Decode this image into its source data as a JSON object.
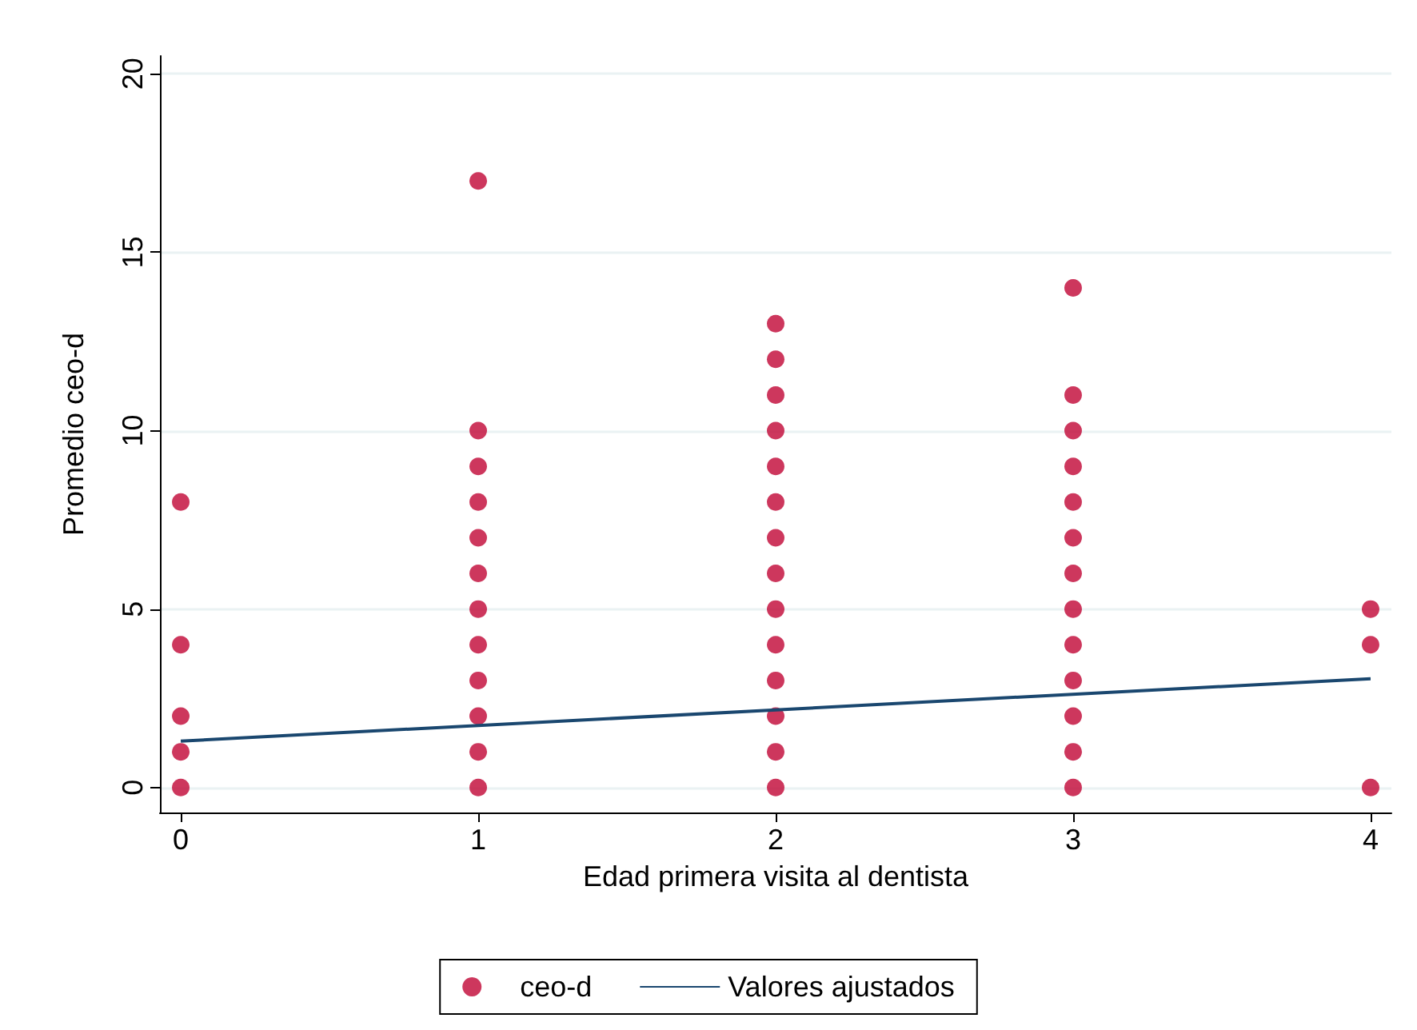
{
  "chart_data": {
    "type": "scatter",
    "xlabel": "Edad primera visita al dentista",
    "ylabel": "Promedio ceo-d",
    "xlim": [
      -0.07,
      4.07
    ],
    "xticks": [
      0,
      1,
      2,
      3,
      4
    ],
    "ylim": [
      -0.7,
      20.5
    ],
    "yticks": [
      0,
      5,
      10,
      15,
      20
    ],
    "grid": "y",
    "legend": "bottom",
    "series": [
      {
        "name": "ceo-d",
        "marker": "circle",
        "color": "#c10534",
        "x": [
          0,
          0,
          0,
          0,
          0,
          1,
          1,
          1,
          1,
          1,
          1,
          1,
          1,
          1,
          1,
          1,
          1,
          2,
          2,
          2,
          2,
          2,
          2,
          2,
          2,
          2,
          2,
          2,
          2,
          2,
          2,
          3,
          3,
          3,
          3,
          3,
          3,
          3,
          3,
          3,
          3,
          3,
          3,
          3,
          4,
          4,
          4
        ],
        "values": [
          0,
          1,
          2,
          4,
          8,
          0,
          1,
          2,
          3,
          4,
          5,
          6,
          7,
          8,
          9,
          10,
          17,
          0,
          1,
          2,
          3,
          4,
          5,
          6,
          7,
          8,
          9,
          10,
          11,
          12,
          13,
          0,
          1,
          2,
          3,
          4,
          5,
          6,
          7,
          8,
          9,
          10,
          11,
          14,
          0,
          4,
          5
        ]
      },
      {
        "name": "Valores ajustados",
        "type": "line",
        "marker": "none",
        "line_style": "solid",
        "color": "#1a476f",
        "x": [
          0,
          4
        ],
        "values": [
          1.3,
          3.05
        ]
      }
    ]
  }
}
